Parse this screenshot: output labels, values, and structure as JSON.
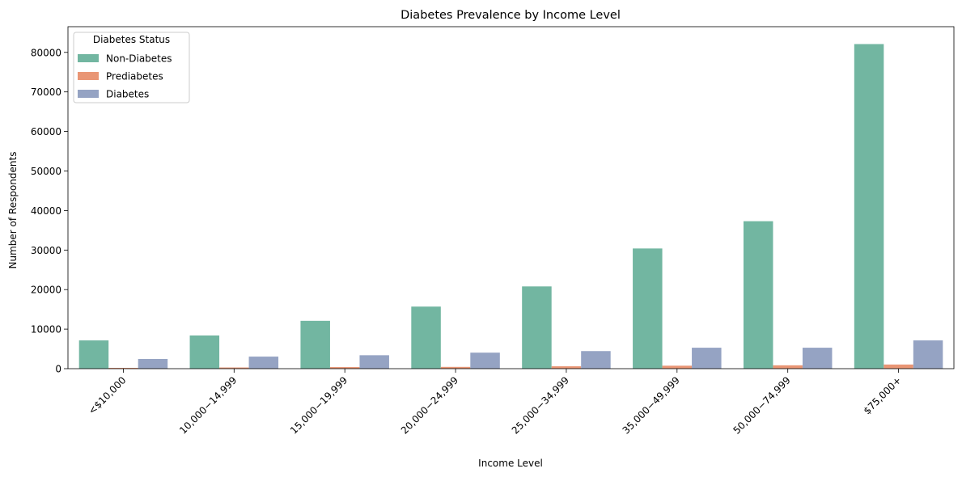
{
  "chart_data": {
    "type": "bar",
    "title": "Diabetes Prevalence by Income Level",
    "xlabel": "Income Level",
    "ylabel": "Number of Respondents",
    "categories": [
      "<$10,000",
      "10,000−14,999",
      "15,000−19,999",
      "20,000−24,999",
      "25,000−34,999",
      "35,000−49,999",
      "50,000−74,999",
      "$75,000+"
    ],
    "series": [
      {
        "name": "Non-Diabetes",
        "color": "#72b6a1",
        "values": [
          7150,
          8400,
          12100,
          15700,
          20800,
          30400,
          37300,
          82100
        ]
      },
      {
        "name": "Prediabetes",
        "color": "#e99675",
        "values": [
          200,
          300,
          400,
          450,
          600,
          750,
          850,
          1050
        ]
      },
      {
        "name": "Diabetes",
        "color": "#95a3c3",
        "values": [
          2450,
          3050,
          3400,
          4050,
          4450,
          5300,
          5300,
          7150
        ]
      }
    ],
    "ylim": [
      0,
      86500
    ],
    "yticks": [
      0,
      10000,
      20000,
      30000,
      40000,
      50000,
      60000,
      70000,
      80000
    ],
    "legend": {
      "title": "Diabetes Status",
      "position": "top-left"
    },
    "grid": false
  }
}
